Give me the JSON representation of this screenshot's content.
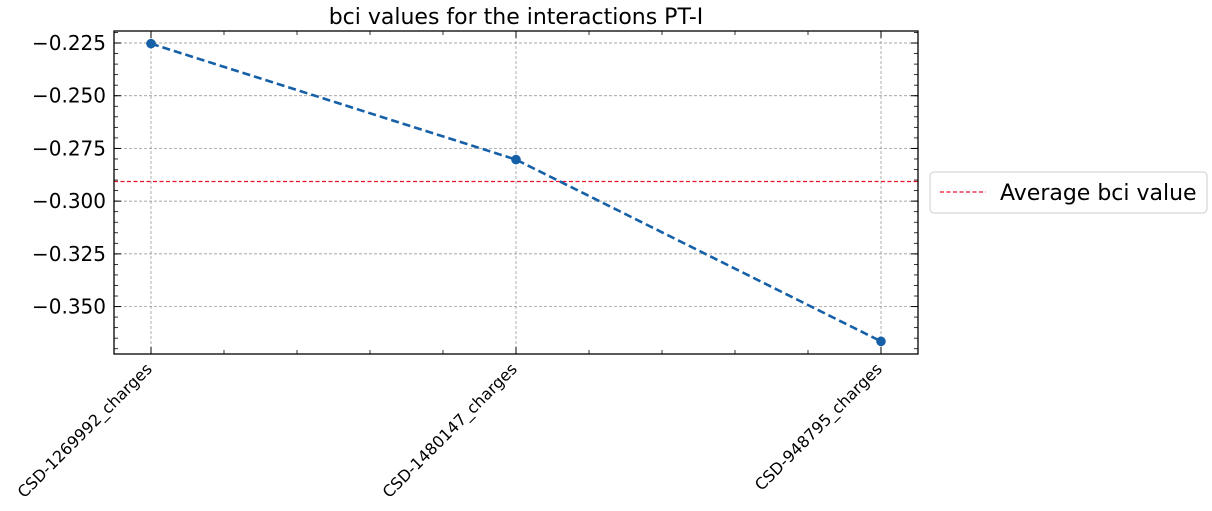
{
  "chart_data": {
    "type": "line",
    "title": "bci values for the interactions PT-I",
    "xlabel": "",
    "ylabel": "",
    "categories": [
      "CSD-1269992_charges",
      "CSD-1480147_charges",
      "CSD-948795_charges"
    ],
    "series": [
      {
        "values": [
          -0.2253,
          -0.2803,
          -0.3665
        ],
        "color": "#1660a8",
        "style": "dashed",
        "marker": "circle"
      }
    ],
    "reference_lines": [
      {
        "label": "Average bci value",
        "value": -0.2907,
        "color": "#e8112d",
        "style": "dashed"
      }
    ],
    "yticks": [
      "−0.225",
      "−0.250",
      "−0.275",
      "−0.300",
      "−0.325",
      "−0.350"
    ],
    "ytick_values": [
      -0.225,
      -0.25,
      -0.275,
      -0.3,
      -0.325,
      -0.35
    ],
    "ylim": [
      -0.3725,
      -0.2193
    ],
    "grid": true,
    "legend": {
      "position": "outside-right",
      "entries": [
        "Average bci value"
      ]
    }
  }
}
